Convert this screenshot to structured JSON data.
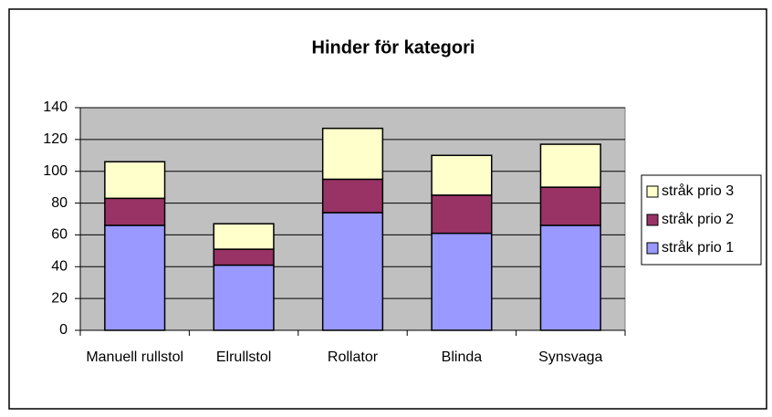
{
  "chart_data": {
    "type": "stacked_bar",
    "title": "Hinder för kategori",
    "categories": [
      "Manuell rullstol",
      "Elrullstol",
      "Rollator",
      "Blinda",
      "Synsvaga"
    ],
    "series": [
      {
        "name": "stråk prio 1",
        "color": "#9999ff",
        "values": [
          66,
          41,
          74,
          61,
          66
        ]
      },
      {
        "name": "stråk prio 2",
        "color": "#993366",
        "values": [
          17,
          10,
          21,
          24,
          24
        ]
      },
      {
        "name": "stråk prio 3",
        "color": "#ffffcc",
        "values": [
          23,
          16,
          32,
          25,
          27
        ]
      }
    ],
    "ylim": [
      0,
      140
    ],
    "yticks": [
      0,
      20,
      40,
      60,
      80,
      100,
      120,
      140
    ],
    "grid": true,
    "legend": "right"
  }
}
